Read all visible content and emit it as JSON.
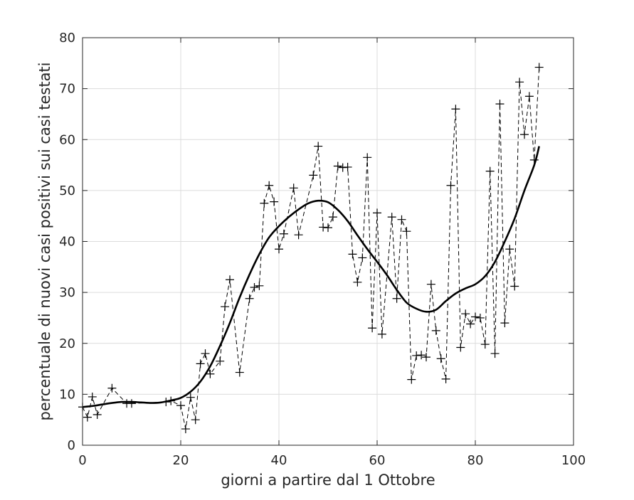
{
  "chart_data": {
    "type": "line",
    "xlabel": "giorni a partire dal 1 Ottobre",
    "ylabel": "percentuale di nuovi casi positivi sui casi testati",
    "xlim": [
      0,
      100
    ],
    "ylim": [
      0,
      80
    ],
    "xticks": [
      0,
      20,
      40,
      60,
      80,
      100
    ],
    "yticks": [
      0,
      10,
      20,
      30,
      40,
      50,
      60,
      70,
      80
    ],
    "grid": true,
    "legend": "none",
    "series": [
      {
        "style": "dashed-with-plus-markers",
        "color": "#000000",
        "x": [
          0,
          1,
          2,
          3,
          6,
          9,
          10,
          17,
          18,
          20,
          21,
          22,
          23,
          24,
          25,
          26,
          28,
          29,
          30,
          32,
          34,
          35,
          36,
          37,
          38,
          39,
          40,
          41,
          43,
          44,
          47,
          48,
          49,
          50,
          51,
          52,
          53,
          54,
          55,
          56,
          57,
          58,
          59,
          60,
          61,
          63,
          64,
          65,
          66,
          67,
          68,
          69,
          70,
          71,
          72,
          73,
          74,
          75,
          76,
          77,
          78,
          79,
          80,
          81,
          82,
          83,
          84,
          85,
          86,
          87,
          88,
          89,
          90,
          91,
          92,
          93
        ],
        "y": [
          7.5,
          5.5,
          9.5,
          6,
          11.2,
          8.2,
          8.2,
          8.5,
          8.7,
          7.8,
          3.2,
          9.4,
          5,
          16,
          18,
          14,
          16.5,
          27.2,
          32.5,
          14.3,
          28.8,
          31,
          31.3,
          47.5,
          51,
          47.8,
          38.5,
          41.5,
          50.5,
          41.3,
          53,
          58.7,
          42.8,
          42.7,
          44.8,
          54.8,
          54.5,
          54.6,
          37.5,
          32,
          36.8,
          56.5,
          23,
          45.6,
          21.8,
          44.8,
          28.8,
          44.3,
          42,
          12.9,
          17.6,
          17.7,
          17.3,
          31.6,
          22.5,
          17,
          13,
          51,
          66,
          19.2,
          25.8,
          23.8,
          25.2,
          25,
          19.8,
          53.8,
          18,
          67,
          24,
          38.5,
          31.2,
          71.3,
          61,
          68.5,
          56,
          74.2
        ]
      },
      {
        "style": "solid-thick-smooth",
        "color": "#000000",
        "x": [
          0,
          2,
          4,
          6,
          8,
          10,
          12,
          14,
          16,
          18,
          20,
          22,
          24,
          26,
          28,
          30,
          32,
          34,
          36,
          38,
          40,
          42,
          44,
          46,
          48,
          50,
          52,
          54,
          56,
          58,
          60,
          62,
          64,
          66,
          68,
          70,
          72,
          74,
          76,
          78,
          80,
          82,
          84,
          86,
          88,
          90,
          92,
          93
        ],
        "y": [
          7.5,
          7.7,
          8,
          8.3,
          8.5,
          8.5,
          8.4,
          8.3,
          8.4,
          8.8,
          9.3,
          10.5,
          12.5,
          15.5,
          19.5,
          24,
          29,
          33.5,
          37.5,
          40.8,
          43,
          44.8,
          46.3,
          47.5,
          48,
          47.7,
          46.2,
          44,
          41.2,
          38.5,
          36,
          33.4,
          30.5,
          28,
          26.8,
          26.2,
          26.6,
          28.3,
          29.8,
          30.8,
          31.6,
          33.2,
          36,
          40,
          44.5,
          50,
          55,
          58.7
        ]
      }
    ]
  }
}
